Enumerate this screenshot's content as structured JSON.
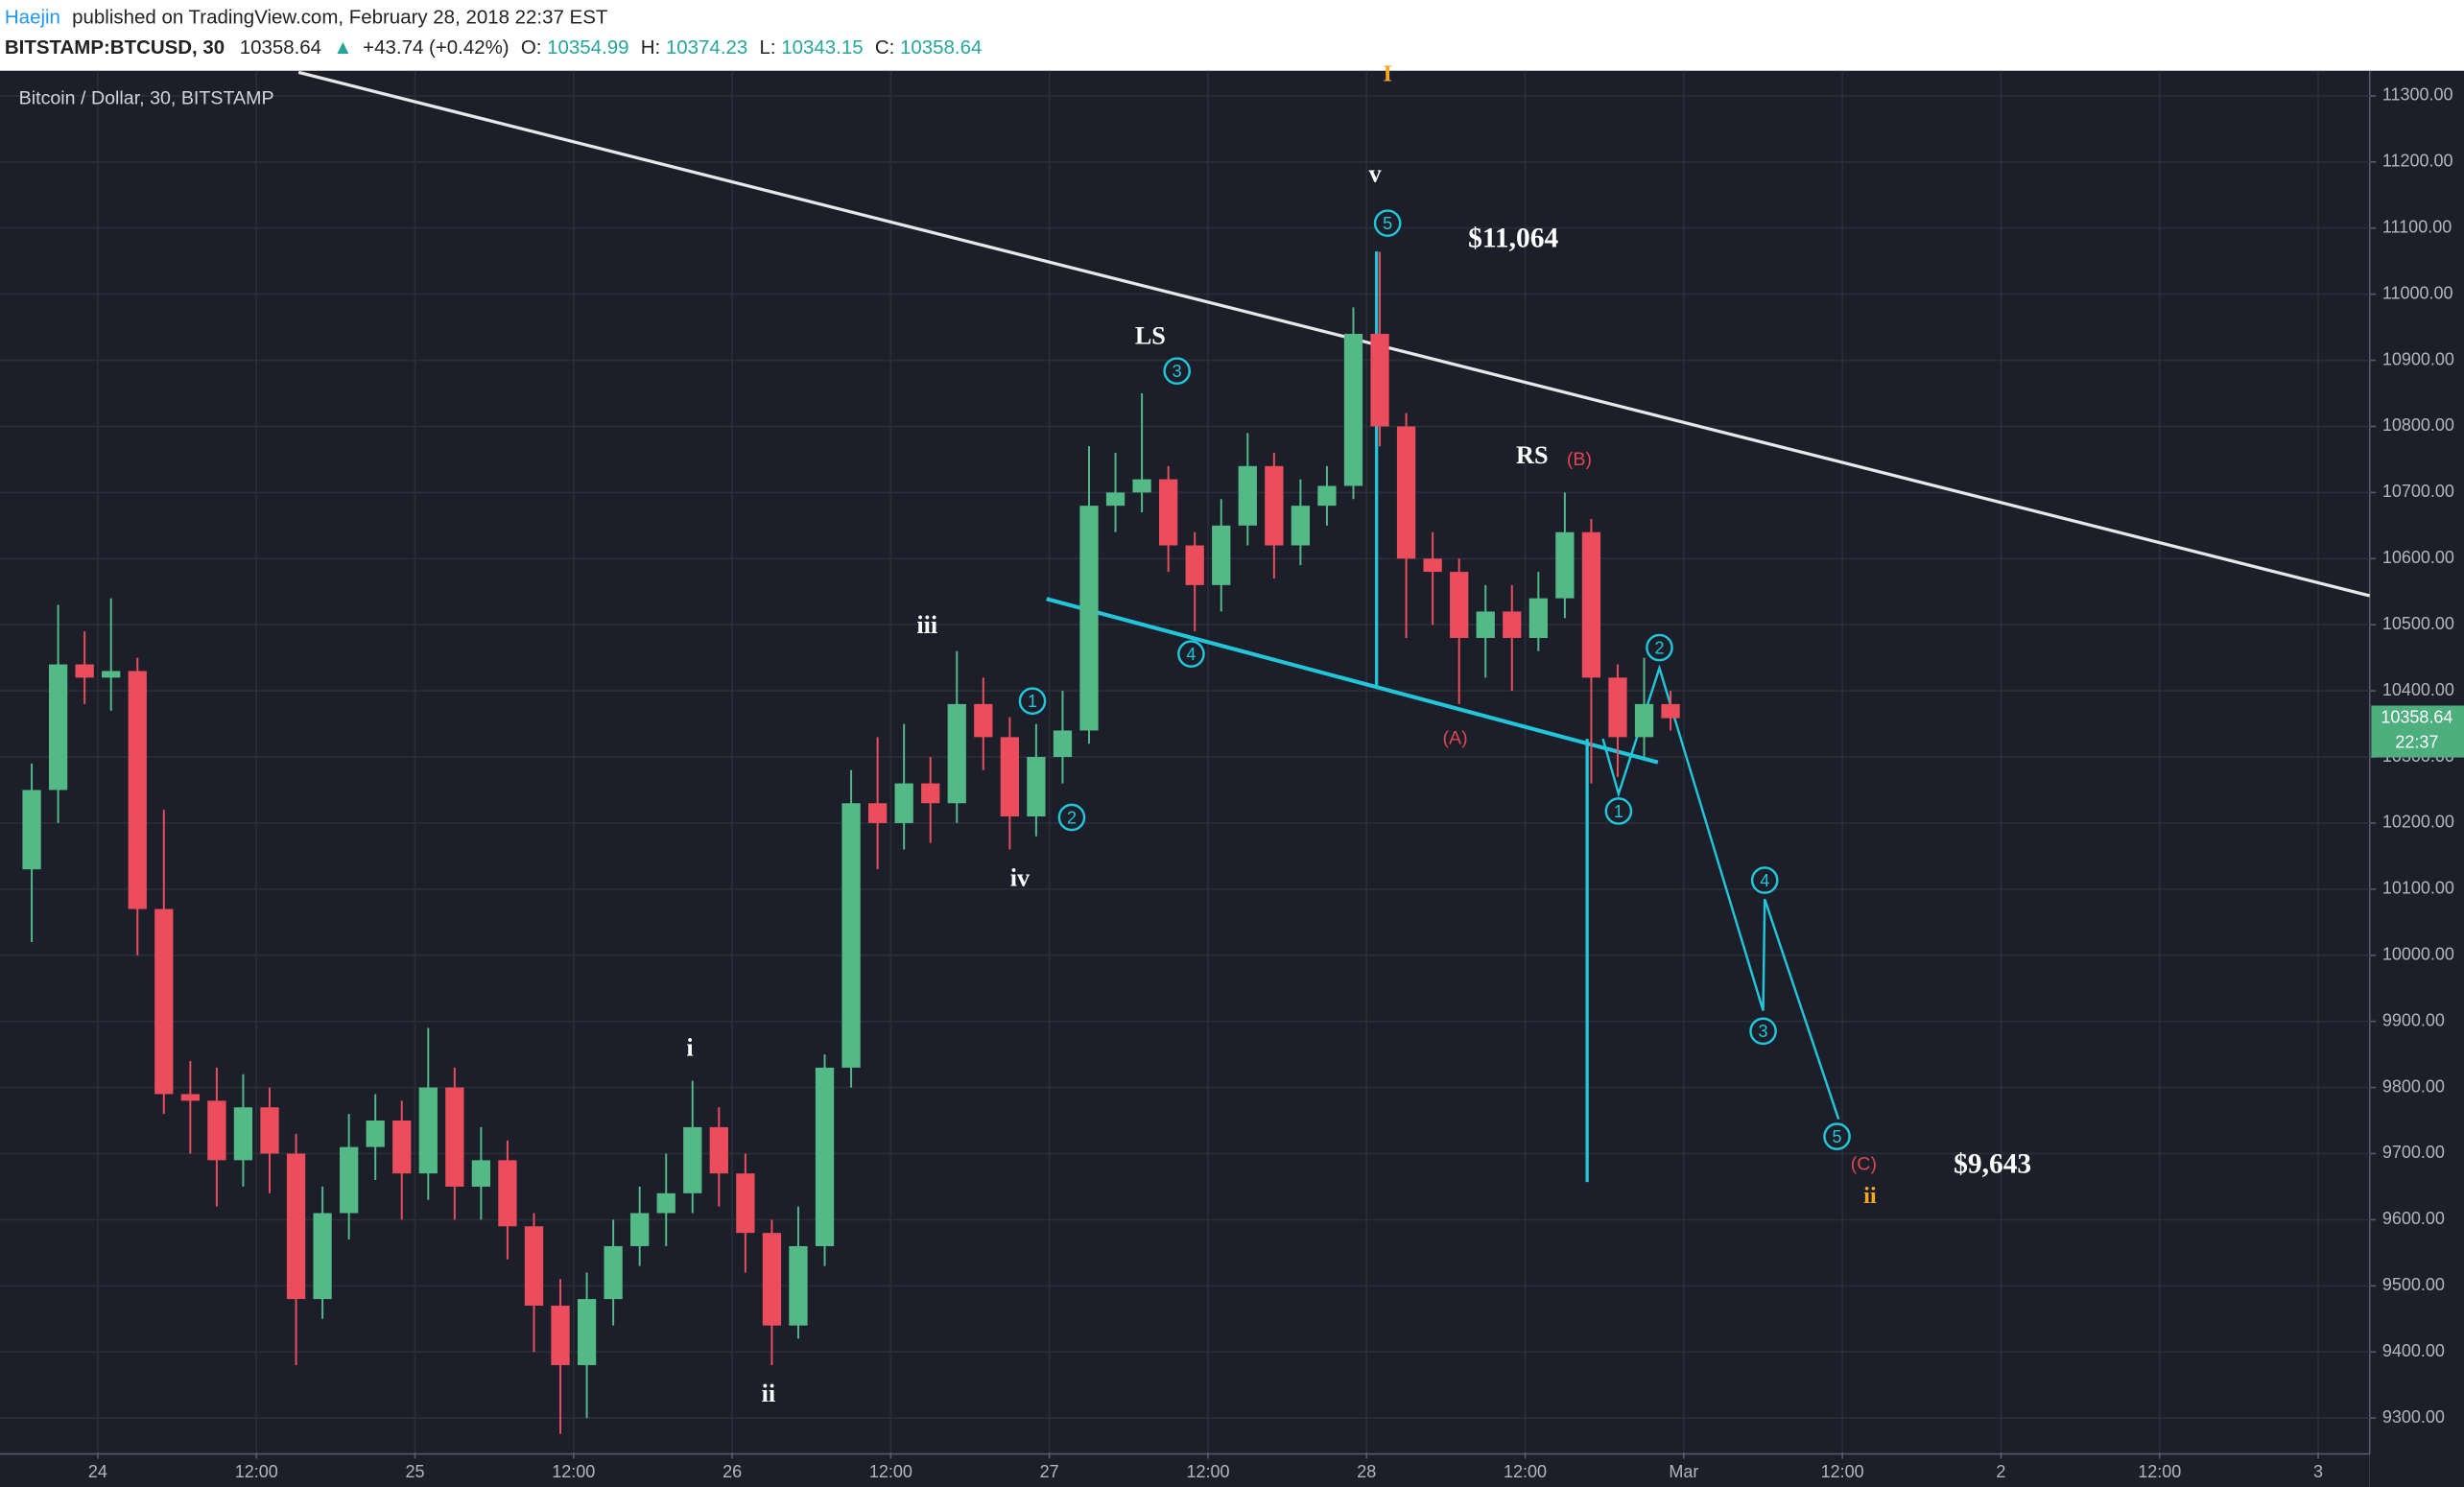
{
  "header": {
    "author": "Haejin",
    "published": "published on TradingView.com, February 28, 2018 22:37 EST",
    "symbol": "BITSTAMP:BTCUSD, 30",
    "last": "10358.64",
    "arrow": "▲",
    "change": "+43.74 (+0.42%)",
    "o_label": "O:",
    "o": "10354.99",
    "h_label": "H:",
    "h": "10374.23",
    "l_label": "L:",
    "l": "10343.15",
    "c_label": "C:",
    "c": "10358.64"
  },
  "chart_data": {
    "type": "candlestick",
    "title": "Bitcoin / Dollar, 30, BITSTAMP",
    "up_color": "#53b987",
    "down_color": "#eb4d5c",
    "grid": true,
    "xlim": [
      -7.4,
      171.9
    ],
    "ylim": [
      9248,
      11338
    ],
    "xticks": [
      {
        "value": 0,
        "label": "24"
      },
      {
        "value": 12,
        "label": "12:00"
      },
      {
        "value": 24,
        "label": "25"
      },
      {
        "value": 36,
        "label": "12:00"
      },
      {
        "value": 48,
        "label": "26"
      },
      {
        "value": 60,
        "label": "12:00"
      },
      {
        "value": 72,
        "label": "27"
      },
      {
        "value": 84,
        "label": "12:00"
      },
      {
        "value": 96,
        "label": "28"
      },
      {
        "value": 108,
        "label": "12:00"
      },
      {
        "value": 120,
        "label": "Mar"
      },
      {
        "value": 132,
        "label": "12:00"
      },
      {
        "value": 144,
        "label": "2"
      },
      {
        "value": 156,
        "label": "12:00"
      },
      {
        "value": 168,
        "label": "3"
      }
    ],
    "yticks": [
      {
        "value": 9300,
        "label": "9300.00"
      },
      {
        "value": 9400,
        "label": "9400.00"
      },
      {
        "value": 9500,
        "label": "9500.00"
      },
      {
        "value": 9600,
        "label": "9600.00"
      },
      {
        "value": 9700,
        "label": "9700.00"
      },
      {
        "value": 9800,
        "label": "9800.00"
      },
      {
        "value": 9900,
        "label": "9900.00"
      },
      {
        "value": 10000,
        "label": "10000.00"
      },
      {
        "value": 10100,
        "label": "10100.00"
      },
      {
        "value": 10200,
        "label": "10200.00"
      },
      {
        "value": 10300,
        "label": "10300.00"
      },
      {
        "value": 10400,
        "label": "10400.00"
      },
      {
        "value": 10500,
        "label": "10500.00"
      },
      {
        "value": 10600,
        "label": "10600.00"
      },
      {
        "value": 10700,
        "label": "10700.00"
      },
      {
        "value": 10800,
        "label": "10800.00"
      },
      {
        "value": 10900,
        "label": "10900.00"
      },
      {
        "value": 11000,
        "label": "11000.00"
      },
      {
        "value": 11100,
        "label": "11100.00"
      },
      {
        "value": 11200,
        "label": "11200.00"
      },
      {
        "value": 11300,
        "label": "11300.00"
      }
    ],
    "x": [
      -6,
      -4,
      -2,
      0,
      2,
      4,
      6,
      8,
      10,
      12,
      14,
      16,
      18,
      20,
      22,
      24,
      26,
      28,
      30,
      32,
      34,
      36,
      38,
      40,
      42,
      44,
      46,
      48,
      50,
      52,
      54,
      56,
      58,
      60,
      62,
      64,
      66,
      68,
      70,
      72,
      74,
      76,
      78,
      80,
      82,
      84,
      86,
      88,
      90,
      92,
      94,
      96,
      98,
      100,
      102,
      104,
      106,
      108,
      110,
      112,
      114,
      116,
      118
    ],
    "open": [
      10130,
      10250,
      10440,
      10420,
      10430,
      10070,
      9790,
      9780,
      9690,
      9770,
      9700,
      9480,
      9610,
      9710,
      9750,
      9670,
      9800,
      9650,
      9690,
      9590,
      9470,
      9380,
      9480,
      9560,
      9610,
      9640,
      9740,
      9670,
      9580,
      9440,
      9560,
      9830,
      10230,
      10200,
      10260,
      10230,
      10380,
      10330,
      10210,
      10300,
      10340,
      10680,
      10700,
      10720,
      10620,
      10560,
      10650,
      10740,
      10620,
      10680,
      10710,
      10940,
      10800,
      10600,
      10580,
      10480,
      10520,
      10480,
      10540,
      10640,
      10420,
      10330,
      10380
    ],
    "high": [
      10290,
      10530,
      10490,
      10540,
      10450,
      10220,
      9840,
      9830,
      9820,
      9800,
      9730,
      9650,
      9760,
      9790,
      9780,
      9890,
      9830,
      9740,
      9720,
      9610,
      9510,
      9520,
      9600,
      9650,
      9700,
      9810,
      9770,
      9700,
      9600,
      9620,
      9850,
      10280,
      10330,
      10350,
      10300,
      10460,
      10420,
      10360,
      10350,
      10400,
      10770,
      10760,
      10850,
      10740,
      10640,
      10690,
      10790,
      10760,
      10720,
      10740,
      10980,
      11064,
      10820,
      10640,
      10600,
      10560,
      10560,
      10580,
      10700,
      10660,
      10440,
      10450,
      10400
    ],
    "low": [
      10020,
      10200,
      10380,
      10370,
      10000,
      9760,
      9700,
      9620,
      9650,
      9640,
      9380,
      9450,
      9570,
      9660,
      9600,
      9630,
      9600,
      9600,
      9540,
      9400,
      9276,
      9300,
      9440,
      9530,
      9560,
      9610,
      9620,
      9520,
      9380,
      9420,
      9530,
      9800,
      10130,
      10160,
      10170,
      10200,
      10280,
      10160,
      10180,
      10260,
      10320,
      10640,
      10670,
      10580,
      10490,
      10520,
      10620,
      10570,
      10590,
      10650,
      10690,
      10770,
      10480,
      10500,
      10380,
      10420,
      10400,
      10460,
      10510,
      10260,
      10270,
      10300,
      10340
    ],
    "close": [
      10250,
      10440,
      10420,
      10430,
      10070,
      9790,
      9780,
      9690,
      9770,
      9700,
      9480,
      9610,
      9710,
      9750,
      9670,
      9800,
      9650,
      9690,
      9590,
      9470,
      9380,
      9480,
      9560,
      9610,
      9640,
      9740,
      9670,
      9580,
      9440,
      9560,
      9830,
      10230,
      10200,
      10260,
      10230,
      10380,
      10330,
      10210,
      10300,
      10340,
      10680,
      10700,
      10720,
      10620,
      10560,
      10650,
      10740,
      10620,
      10680,
      10710,
      10940,
      10800,
      10600,
      10580,
      10480,
      10520,
      10480,
      10540,
      10640,
      10420,
      10330,
      10380,
      10358.64
    ],
    "last_price": 10358.64,
    "last_time": "22:37",
    "annotations": [
      "I",
      "v",
      "5",
      "$11,064",
      "LS",
      "3",
      "RS",
      "(B)",
      "iii",
      "4",
      "1",
      "2",
      "iv",
      "(A)",
      "2",
      "1",
      "4",
      "3",
      "5",
      "(C)",
      "ii",
      "$9,643",
      "i",
      "ii"
    ]
  }
}
